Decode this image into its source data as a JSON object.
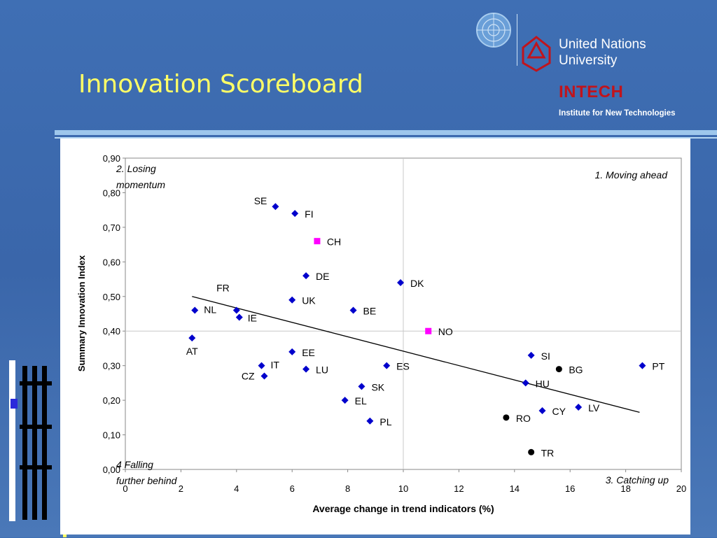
{
  "slide": {
    "title": "Innovation Scoreboard"
  },
  "logos": {
    "un_org_line1": "United Nations",
    "un_org_line2": "University",
    "intech_name": "INTECH",
    "intech_tagline": "Institute for New Technologies",
    "merit_logo_icon": "merit-logo-icon",
    "un_emblem_icon": "un-emblem-icon",
    "unu_symbol_icon": "unu-symbol-icon"
  },
  "colors": {
    "eu_series": "#0000cc",
    "non_eu_series": "#ff00ff",
    "other_series": "#000000",
    "title": "#ffff66",
    "intech_red": "#c0141c"
  },
  "chart_data": {
    "type": "scatter",
    "xlabel": "Average change in trend indicators (%)",
    "ylabel": "Summary Innovation Index",
    "xlim": [
      0,
      20
    ],
    "ylim": [
      0,
      0.9
    ],
    "x_ticks": [
      0,
      2,
      4,
      6,
      8,
      10,
      12,
      14,
      16,
      18,
      20
    ],
    "x_tick_labels": [
      "0",
      "2",
      "4",
      "6",
      "8",
      "10",
      "12",
      "14",
      "16",
      "18",
      "20"
    ],
    "y_ticks": [
      0,
      0.1,
      0.2,
      0.3,
      0.4,
      0.5,
      0.6,
      0.7,
      0.8,
      0.9
    ],
    "y_tick_labels": [
      "0,00",
      "0,10",
      "0,20",
      "0,30",
      "0,40",
      "0,50",
      "0,60",
      "0,70",
      "0,80",
      "0,90"
    ],
    "grid": "horizontal at 0.40 and vertical at 10",
    "series": [
      {
        "marker": "diamond",
        "color": "#0000cc",
        "points": [
          {
            "label": "SE",
            "x": 5.4,
            "y": 0.76
          },
          {
            "label": "FI",
            "x": 6.1,
            "y": 0.74
          },
          {
            "label": "DE",
            "x": 6.5,
            "y": 0.56
          },
          {
            "label": "DK",
            "x": 9.9,
            "y": 0.54
          },
          {
            "label": "UK",
            "x": 6.0,
            "y": 0.49
          },
          {
            "label": "BE",
            "x": 8.2,
            "y": 0.46
          },
          {
            "label": "FR",
            "x": 4.0,
            "y": 0.46
          },
          {
            "label": "NL",
            "x": 2.5,
            "y": 0.46
          },
          {
            "label": "IE",
            "x": 4.1,
            "y": 0.44
          },
          {
            "label": "AT",
            "x": 2.4,
            "y": 0.38
          },
          {
            "label": "EE",
            "x": 6.0,
            "y": 0.34
          },
          {
            "label": "IT",
            "x": 4.9,
            "y": 0.3
          },
          {
            "label": "LU",
            "x": 6.5,
            "y": 0.29
          },
          {
            "label": "ES",
            "x": 9.4,
            "y": 0.3
          },
          {
            "label": "CZ",
            "x": 5.0,
            "y": 0.27
          },
          {
            "label": "SK",
            "x": 8.5,
            "y": 0.24
          },
          {
            "label": "EL",
            "x": 7.9,
            "y": 0.2
          },
          {
            "label": "PL",
            "x": 8.8,
            "y": 0.14
          },
          {
            "label": "SI",
            "x": 14.6,
            "y": 0.33
          },
          {
            "label": "HU",
            "x": 14.4,
            "y": 0.25
          },
          {
            "label": "CY",
            "x": 15.0,
            "y": 0.17
          },
          {
            "label": "LV",
            "x": 16.3,
            "y": 0.18
          },
          {
            "label": "PT",
            "x": 18.6,
            "y": 0.3
          }
        ]
      },
      {
        "marker": "square",
        "color": "#ff00ff",
        "points": [
          {
            "label": "CH",
            "x": 6.9,
            "y": 0.66
          },
          {
            "label": "NO",
            "x": 10.9,
            "y": 0.4
          }
        ]
      },
      {
        "marker": "circle",
        "color": "#000000",
        "points": [
          {
            "label": "BG",
            "x": 15.6,
            "y": 0.29
          },
          {
            "label": "RO",
            "x": 13.7,
            "y": 0.15
          },
          {
            "label": "TR",
            "x": 14.6,
            "y": 0.05
          }
        ]
      }
    ],
    "trendline": {
      "x": [
        2.4,
        18.5
      ],
      "y": [
        0.5,
        0.165
      ]
    },
    "annotations": {
      "q1": "1. Moving ahead",
      "q2_line1": "2. Losing",
      "q2_line2": "momentum",
      "q3": "3. Catching up",
      "q4_line1": "4 Falling",
      "q4_line2": "further behind"
    }
  }
}
